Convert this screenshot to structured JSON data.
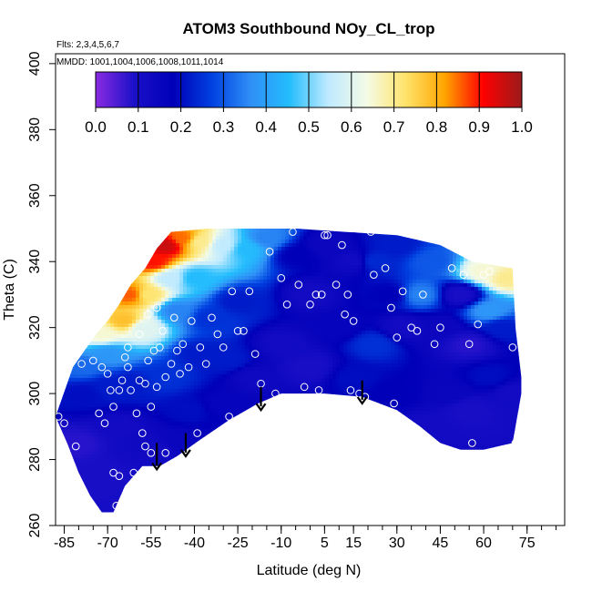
{
  "chart_data": {
    "type": "heatmap",
    "title": "ATOM3 Southbound NOy_CL_trop",
    "subtitle_flights": "Flts: 2,3,4,5,6,7",
    "subtitle_dates": "MMDD: 1001,1004,1006,1008,1011,1014",
    "xlabel": "Latitude (deg N)",
    "ylabel": "Theta (C)",
    "xlim": [
      -88,
      88
    ],
    "ylim": [
      260,
      403
    ],
    "x_ticks": [
      -85,
      -70,
      -55,
      -40,
      -25,
      -10,
      5,
      15,
      30,
      45,
      60,
      75
    ],
    "y_ticks": [
      260,
      280,
      300,
      320,
      340,
      360,
      380,
      400
    ],
    "colorbar": {
      "min": 0.0,
      "max": 1.0,
      "ticks": [
        "0.0",
        "0.1",
        "0.2",
        "0.3",
        "0.4",
        "0.5",
        "0.6",
        "0.7",
        "0.8",
        "0.9",
        "1.0"
      ],
      "colors": [
        "#8a2be2",
        "#1a10c8",
        "#0000b8",
        "#0040e0",
        "#2f8ff6",
        "#24bdfd",
        "#bfeaff",
        "#f4fbe6",
        "#ffe36a",
        "#ffa500",
        "#ff0000",
        "#9b1b1b"
      ]
    },
    "domain_top": [
      [
        -82,
        308
      ],
      [
        -78,
        313
      ],
      [
        -74,
        318
      ],
      [
        -70,
        322
      ],
      [
        -66,
        327
      ],
      [
        -62,
        333
      ],
      [
        -57,
        338
      ],
      [
        -53,
        344
      ],
      [
        -48,
        349
      ],
      [
        -35,
        350
      ],
      [
        -20,
        350
      ],
      [
        -5,
        350
      ],
      [
        12,
        349
      ],
      [
        30,
        348
      ],
      [
        45,
        345
      ],
      [
        56,
        340
      ],
      [
        70,
        338
      ],
      [
        71,
        320
      ],
      [
        73,
        305
      ]
    ],
    "domain_bottom": [
      [
        -88,
        293
      ],
      [
        -84,
        285
      ],
      [
        -80,
        276
      ],
      [
        -76,
        269
      ],
      [
        -72,
        264
      ],
      [
        -68,
        264
      ],
      [
        -64,
        272
      ],
      [
        -58,
        278
      ],
      [
        -52,
        278
      ],
      [
        -46,
        281
      ],
      [
        -38,
        286
      ],
      [
        -28,
        292
      ],
      [
        -18,
        297
      ],
      [
        -10,
        300
      ],
      [
        5,
        300
      ],
      [
        18,
        299
      ],
      [
        30,
        295
      ],
      [
        38,
        290
      ],
      [
        45,
        285
      ],
      [
        52,
        283
      ],
      [
        60,
        283
      ],
      [
        70,
        285
      ],
      [
        73,
        300
      ]
    ],
    "field_points": [
      {
        "lat": -80,
        "theta": 285,
        "value": 0.08
      },
      {
        "lat": -72,
        "theta": 275,
        "value": 0.1
      },
      {
        "lat": -66,
        "theta": 290,
        "value": 0.12
      },
      {
        "lat": -58,
        "theta": 285,
        "value": 0.13
      },
      {
        "lat": -52,
        "theta": 282,
        "value": 0.12
      },
      {
        "lat": -78,
        "theta": 300,
        "value": 0.2
      },
      {
        "lat": -70,
        "theta": 302,
        "value": 0.22
      },
      {
        "lat": -62,
        "theta": 303,
        "value": 0.22
      },
      {
        "lat": -78,
        "theta": 308,
        "value": 0.32
      },
      {
        "lat": -70,
        "theta": 312,
        "value": 0.38
      },
      {
        "lat": -72,
        "theta": 318,
        "value": 0.65
      },
      {
        "lat": -64,
        "theta": 322,
        "value": 0.78
      },
      {
        "lat": -62,
        "theta": 330,
        "value": 0.86
      },
      {
        "lat": -58,
        "theta": 320,
        "value": 0.6
      },
      {
        "lat": -56,
        "theta": 330,
        "value": 0.72
      },
      {
        "lat": -54,
        "theta": 340,
        "value": 0.9
      },
      {
        "lat": -50,
        "theta": 345,
        "value": 0.96
      },
      {
        "lat": -44,
        "theta": 347,
        "value": 0.85
      },
      {
        "lat": -38,
        "theta": 346,
        "value": 0.7
      },
      {
        "lat": -48,
        "theta": 335,
        "value": 0.55
      },
      {
        "lat": -40,
        "theta": 335,
        "value": 0.45
      },
      {
        "lat": -30,
        "theta": 345,
        "value": 0.55
      },
      {
        "lat": -22,
        "theta": 344,
        "value": 0.45
      },
      {
        "lat": -15,
        "theta": 347,
        "value": 0.35
      },
      {
        "lat": -46,
        "theta": 325,
        "value": 0.35
      },
      {
        "lat": -35,
        "theta": 323,
        "value": 0.25
      },
      {
        "lat": -25,
        "theta": 328,
        "value": 0.22
      },
      {
        "lat": -38,
        "theta": 312,
        "value": 0.22
      },
      {
        "lat": -28,
        "theta": 310,
        "value": 0.22
      },
      {
        "lat": -50,
        "theta": 305,
        "value": 0.25
      },
      {
        "lat": -42,
        "theta": 295,
        "value": 0.2
      },
      {
        "lat": -45,
        "theta": 285,
        "value": 0.15
      },
      {
        "lat": -30,
        "theta": 297,
        "value": 0.16
      },
      {
        "lat": -20,
        "theta": 305,
        "value": 0.13
      },
      {
        "lat": -10,
        "theta": 315,
        "value": 0.12
      },
      {
        "lat": 0,
        "theta": 308,
        "value": 0.1
      },
      {
        "lat": 0,
        "theta": 330,
        "value": 0.12
      },
      {
        "lat": -5,
        "theta": 342,
        "value": 0.18
      },
      {
        "lat": 5,
        "theta": 345,
        "value": 0.14
      },
      {
        "lat": 15,
        "theta": 340,
        "value": 0.12
      },
      {
        "lat": 10,
        "theta": 320,
        "value": 0.16
      },
      {
        "lat": 15,
        "theta": 305,
        "value": 0.2
      },
      {
        "lat": 22,
        "theta": 315,
        "value": 0.25
      },
      {
        "lat": 22,
        "theta": 340,
        "value": 0.24
      },
      {
        "lat": 30,
        "theta": 345,
        "value": 0.22
      },
      {
        "lat": 28,
        "theta": 330,
        "value": 0.18
      },
      {
        "lat": 32,
        "theta": 320,
        "value": 0.12
      },
      {
        "lat": 30,
        "theta": 300,
        "value": 0.18
      },
      {
        "lat": 38,
        "theta": 330,
        "value": 0.35
      },
      {
        "lat": 42,
        "theta": 340,
        "value": 0.3
      },
      {
        "lat": 45,
        "theta": 320,
        "value": 0.14
      },
      {
        "lat": 48,
        "theta": 300,
        "value": 0.15
      },
      {
        "lat": 40,
        "theta": 290,
        "value": 0.12
      },
      {
        "lat": 52,
        "theta": 330,
        "value": 0.1
      },
      {
        "lat": 55,
        "theta": 315,
        "value": 0.08
      },
      {
        "lat": 55,
        "theta": 295,
        "value": 0.1
      },
      {
        "lat": 60,
        "theta": 337,
        "value": 0.65
      },
      {
        "lat": 62,
        "theta": 325,
        "value": 0.38
      },
      {
        "lat": 62,
        "theta": 305,
        "value": 0.2
      },
      {
        "lat": 66,
        "theta": 320,
        "value": 0.22
      },
      {
        "lat": 68,
        "theta": 335,
        "value": 0.7
      },
      {
        "lat": 70,
        "theta": 300,
        "value": 0.12
      }
    ],
    "observations": [
      {
        "lat": -87,
        "theta": 293
      },
      {
        "lat": -85,
        "theta": 291
      },
      {
        "lat": -81,
        "theta": 284
      },
      {
        "lat": -79,
        "theta": 309
      },
      {
        "lat": -75,
        "theta": 310
      },
      {
        "lat": -73,
        "theta": 294
      },
      {
        "lat": -71,
        "theta": 291
      },
      {
        "lat": -72,
        "theta": 308
      },
      {
        "lat": -70,
        "theta": 306
      },
      {
        "lat": -69,
        "theta": 301
      },
      {
        "lat": -68,
        "theta": 296
      },
      {
        "lat": -68,
        "theta": 276
      },
      {
        "lat": -67,
        "theta": 266
      },
      {
        "lat": -66,
        "theta": 275
      },
      {
        "lat": -66,
        "theta": 301
      },
      {
        "lat": -65,
        "theta": 304
      },
      {
        "lat": -64,
        "theta": 311
      },
      {
        "lat": -63,
        "theta": 314
      },
      {
        "lat": -63,
        "theta": 308
      },
      {
        "lat": -62,
        "theta": 301
      },
      {
        "lat": -61,
        "theta": 276
      },
      {
        "lat": -60,
        "theta": 294
      },
      {
        "lat": -59,
        "theta": 304
      },
      {
        "lat": -59,
        "theta": 318
      },
      {
        "lat": -58,
        "theta": 288
      },
      {
        "lat": -57,
        "theta": 284
      },
      {
        "lat": -57,
        "theta": 303
      },
      {
        "lat": -56,
        "theta": 310
      },
      {
        "lat": -56,
        "theta": 324
      },
      {
        "lat": -55,
        "theta": 282
      },
      {
        "lat": -55,
        "theta": 296
      },
      {
        "lat": -54,
        "theta": 313
      },
      {
        "lat": -53,
        "theta": 302
      },
      {
        "lat": -53,
        "theta": 326
      },
      {
        "lat": -52,
        "theta": 314
      },
      {
        "lat": -51,
        "theta": 319
      },
      {
        "lat": -50,
        "theta": 305
      },
      {
        "lat": -50,
        "theta": 282
      },
      {
        "lat": -49,
        "theta": 278
      },
      {
        "lat": -48,
        "theta": 309
      },
      {
        "lat": -47,
        "theta": 323
      },
      {
        "lat": -46,
        "theta": 313
      },
      {
        "lat": -45,
        "theta": 306
      },
      {
        "lat": -44,
        "theta": 315
      },
      {
        "lat": -43,
        "theta": 281
      },
      {
        "lat": -42,
        "theta": 308
      },
      {
        "lat": -41,
        "theta": 322
      },
      {
        "lat": -39,
        "theta": 288
      },
      {
        "lat": -38,
        "theta": 314
      },
      {
        "lat": -36,
        "theta": 309
      },
      {
        "lat": -34,
        "theta": 323
      },
      {
        "lat": -32,
        "theta": 318
      },
      {
        "lat": -30,
        "theta": 314
      },
      {
        "lat": -28,
        "theta": 293
      },
      {
        "lat": -27,
        "theta": 331
      },
      {
        "lat": -25,
        "theta": 319
      },
      {
        "lat": -23,
        "theta": 319
      },
      {
        "lat": -21,
        "theta": 331
      },
      {
        "lat": -19,
        "theta": 312
      },
      {
        "lat": -17,
        "theta": 303
      },
      {
        "lat": -14,
        "theta": 343
      },
      {
        "lat": -12,
        "theta": 300
      },
      {
        "lat": -10,
        "theta": 335
      },
      {
        "lat": -8,
        "theta": 327
      },
      {
        "lat": -6,
        "theta": 349
      },
      {
        "lat": -4,
        "theta": 333
      },
      {
        "lat": -2,
        "theta": 302
      },
      {
        "lat": 0,
        "theta": 327
      },
      {
        "lat": 2,
        "theta": 330
      },
      {
        "lat": 3,
        "theta": 301
      },
      {
        "lat": 4,
        "theta": 330
      },
      {
        "lat": 5,
        "theta": 348
      },
      {
        "lat": 6,
        "theta": 348
      },
      {
        "lat": 9,
        "theta": 333
      },
      {
        "lat": 11,
        "theta": 345
      },
      {
        "lat": 12,
        "theta": 324
      },
      {
        "lat": 13,
        "theta": 330
      },
      {
        "lat": 14,
        "theta": 301
      },
      {
        "lat": 15,
        "theta": 322
      },
      {
        "lat": 17,
        "theta": 300
      },
      {
        "lat": 19,
        "theta": 299
      },
      {
        "lat": 21,
        "theta": 349
      },
      {
        "lat": 22,
        "theta": 336
      },
      {
        "lat": 26,
        "theta": 338
      },
      {
        "lat": 28,
        "theta": 326
      },
      {
        "lat": 29,
        "theta": 297
      },
      {
        "lat": 30,
        "theta": 317
      },
      {
        "lat": 32,
        "theta": 331
      },
      {
        "lat": 34,
        "theta": 291
      },
      {
        "lat": 35,
        "theta": 320
      },
      {
        "lat": 37,
        "theta": 319
      },
      {
        "lat": 39,
        "theta": 330
      },
      {
        "lat": 41,
        "theta": 286
      },
      {
        "lat": 43,
        "theta": 315
      },
      {
        "lat": 45,
        "theta": 320
      },
      {
        "lat": 47,
        "theta": 283
      },
      {
        "lat": 49,
        "theta": 338
      },
      {
        "lat": 53,
        "theta": 336
      },
      {
        "lat": 55,
        "theta": 315
      },
      {
        "lat": 56,
        "theta": 285
      },
      {
        "lat": 58,
        "theta": 321
      },
      {
        "lat": 60,
        "theta": 336
      },
      {
        "lat": 62,
        "theta": 337
      },
      {
        "lat": 70,
        "theta": 314
      },
      {
        "lat": 71,
        "theta": 285
      }
    ],
    "profile_arrows": [
      {
        "lat": -53,
        "theta_top": 285,
        "theta_bottom": 277
      },
      {
        "lat": -43,
        "theta_top": 288,
        "theta_bottom": 281
      },
      {
        "lat": -17,
        "theta_top": 302,
        "theta_bottom": 295
      },
      {
        "lat": 18,
        "theta_top": 304,
        "theta_bottom": 297
      }
    ]
  }
}
